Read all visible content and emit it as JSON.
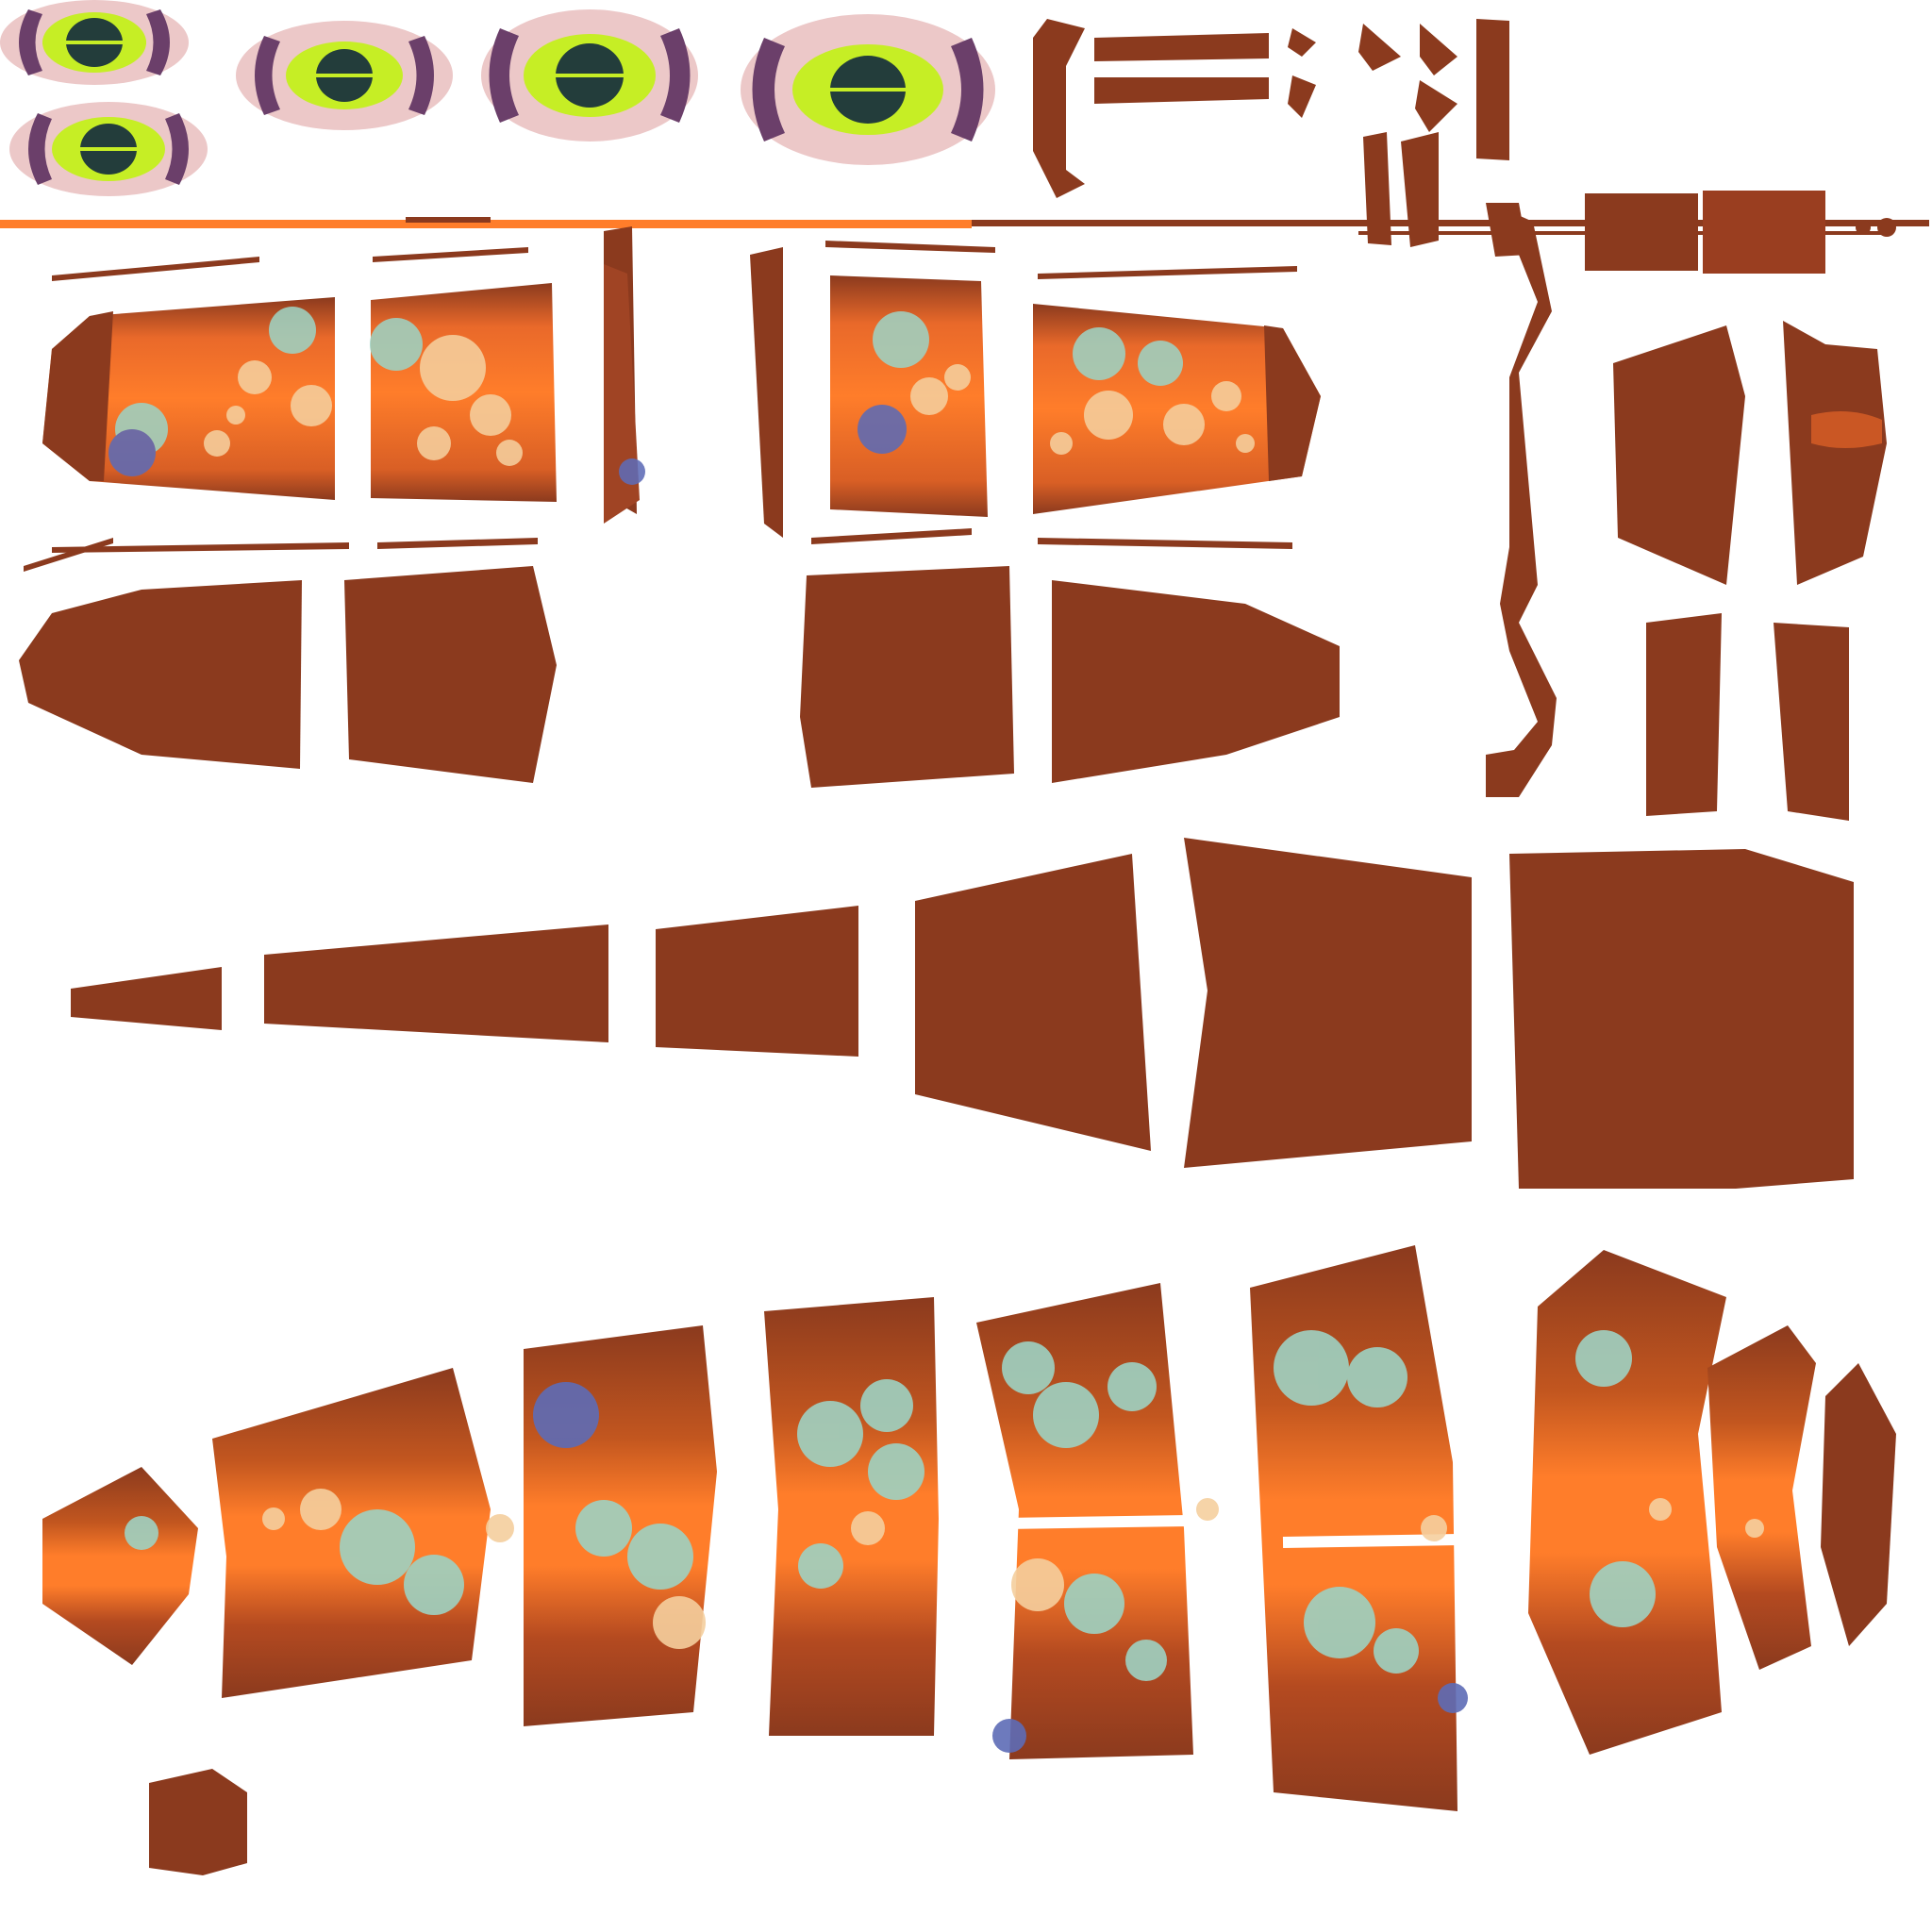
{
  "palette": {
    "background": "#ffffff",
    "skin_dark": "#8b3a1e",
    "skin_mid": "#a04424",
    "orange": "#ff7d2a",
    "spot_teal": "#9ed2c2",
    "spot_cream": "#f5cf9e",
    "spot_blue": "#5d6bb6",
    "eye_pink": "#ecc8c8",
    "eye_lime": "#c6ee25",
    "eye_purple": "#6b3f6a",
    "eye_dark": "#233d3b"
  },
  "layout_groups": [
    {
      "id": "eyes",
      "label": "eye-sprites"
    },
    {
      "id": "fins",
      "label": "fin-and-spine-strips"
    },
    {
      "id": "upper-body",
      "label": "upper-body-panels"
    },
    {
      "id": "tail",
      "label": "tail-strip"
    },
    {
      "id": "lower-body",
      "label": "lower-body-panels"
    }
  ]
}
